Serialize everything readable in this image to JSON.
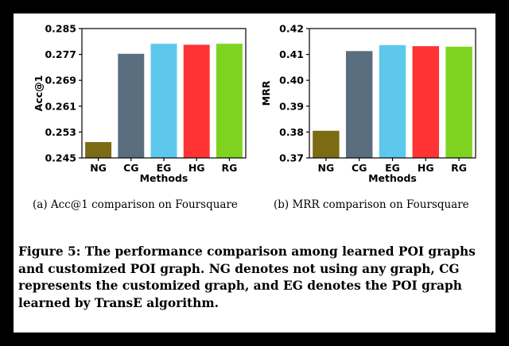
{
  "chart_data": [
    {
      "type": "bar",
      "categories": [
        "NG",
        "CG",
        "EG",
        "HG",
        "RG"
      ],
      "values": [
        0.2499,
        0.2772,
        0.2803,
        0.28,
        0.2803
      ],
      "colors": [
        "#7b6b13",
        "#5a6e80",
        "#5ec8ec",
        "#ff3333",
        "#7ed321"
      ],
      "ylabel": "Acc@1",
      "xlabel": "Methods",
      "ylim": [
        0.245,
        0.285
      ],
      "yticks": [
        "0.245",
        "0.253",
        "0.261",
        "0.269",
        "0.277",
        "0.285"
      ],
      "grid": false,
      "subcaption": "(a)  Acc@1 comparison on Foursquare"
    },
    {
      "type": "bar",
      "categories": [
        "NG",
        "CG",
        "EG",
        "HG",
        "RG"
      ],
      "values": [
        0.3805,
        0.4113,
        0.4136,
        0.4132,
        0.413
      ],
      "colors": [
        "#7b6b13",
        "#5a6e80",
        "#5ec8ec",
        "#ff3333",
        "#7ed321"
      ],
      "ylabel": "MRR",
      "xlabel": "Methods",
      "ylim": [
        0.37,
        0.42
      ],
      "yticks": [
        "0.37",
        "0.38",
        "0.39",
        "0.40",
        "0.41",
        "0.42"
      ],
      "grid": false,
      "subcaption": "(b)  MRR comparison on Foursquare"
    }
  ],
  "caption": "Figure 5: The performance comparison among learned POI graphs and customized POI graph. NG denotes not using any graph, CG represents the customized graph, and EG denotes the POI graph learned by TransE algorithm."
}
